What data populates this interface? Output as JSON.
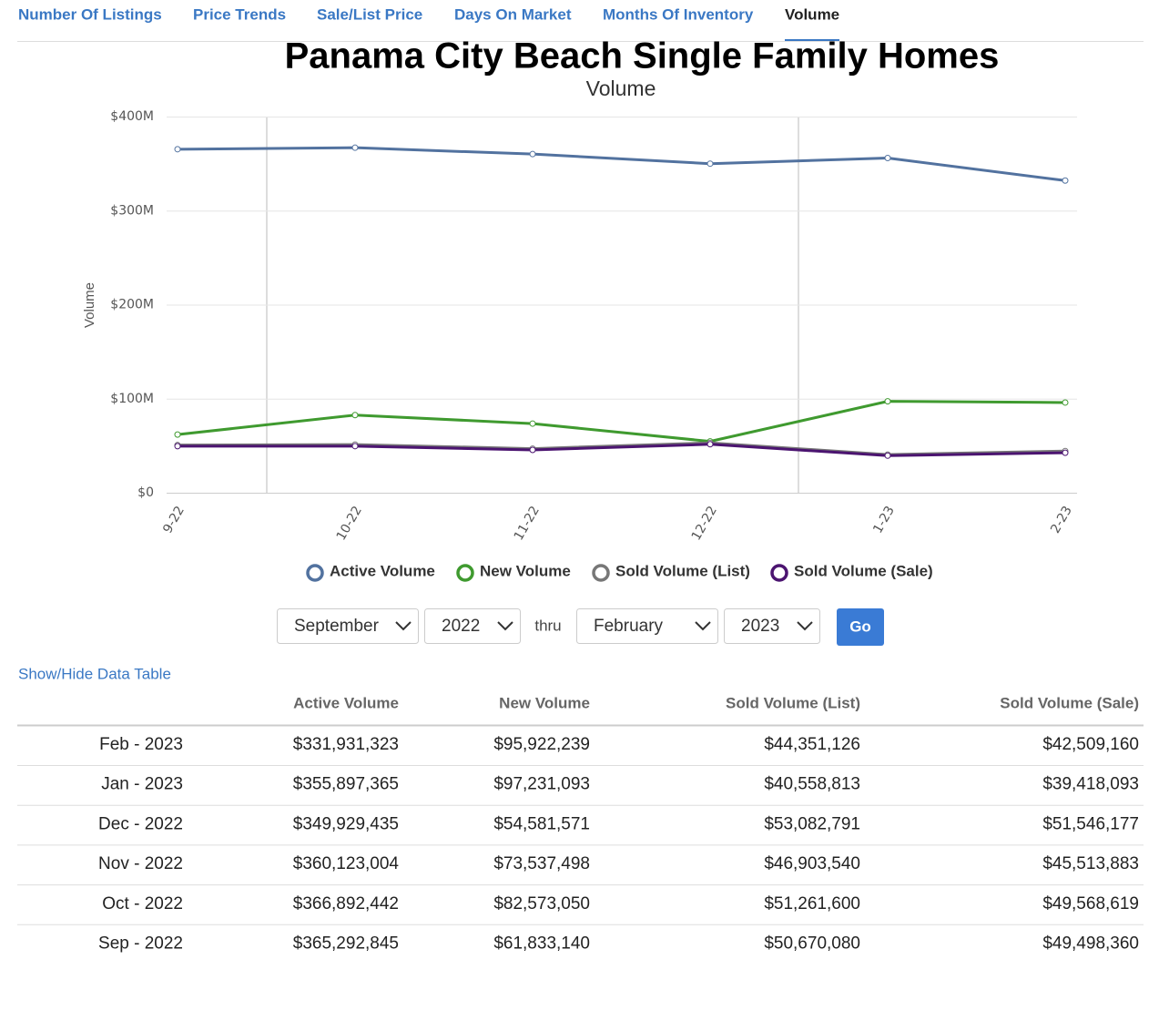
{
  "tabs": [
    "Number Of Listings",
    "Price Trends",
    "Sale/List Price",
    "Days On Market",
    "Months Of Inventory",
    "Volume"
  ],
  "chart_data": {
    "type": "line",
    "title": "Panama City Beach Single Family Homes",
    "subtitle": "Volume",
    "y_label": "Volume",
    "categories": [
      "9-22",
      "10-22",
      "11-22",
      "12-22",
      "1-23",
      "2-23"
    ],
    "series": [
      {
        "name": "Active Volume",
        "color": "#52729f",
        "values": [
          365292845,
          366892442,
          360123004,
          349929435,
          355897365,
          331931323
        ]
      },
      {
        "name": "New Volume",
        "color": "#3f9a2f",
        "values": [
          61833140,
          82573050,
          73537498,
          54581571,
          97231093,
          95922239
        ]
      },
      {
        "name": "Sold Volume (List)",
        "color": "#777777",
        "values": [
          50670080,
          51261600,
          46903540,
          53082791,
          40558813,
          44351126
        ]
      },
      {
        "name": "Sold Volume (Sale)",
        "color": "#4b1470",
        "values": [
          49498360,
          49568619,
          45513883,
          51546177,
          39418093,
          42509160
        ]
      }
    ],
    "ylim": [
      0,
      400000000
    ],
    "yticks": [
      {
        "value": 0,
        "label": "$0"
      },
      {
        "value": 100000000,
        "label": "$100M"
      },
      {
        "value": 200000000,
        "label": "$200M"
      },
      {
        "value": 300000000,
        "label": "$300M"
      },
      {
        "value": 400000000,
        "label": "$400M"
      }
    ],
    "grid": true,
    "legend": "bottom"
  },
  "controls": {
    "start_month": "September",
    "start_year": "2022",
    "thru": "thru",
    "end_month": "February",
    "end_year": "2023",
    "go": "Go"
  },
  "table": {
    "toggle": "Show/Hide Data Table",
    "header": [
      "Active Volume",
      "New Volume",
      "Sold Volume (List)",
      "Sold Volume (Sale)"
    ],
    "rows": [
      [
        "Feb - 2023",
        "$331,931,323",
        "$95,922,239",
        "$44,351,126",
        "$42,509,160"
      ],
      [
        "Jan - 2023",
        "$355,897,365",
        "$97,231,093",
        "$40,558,813",
        "$39,418,093"
      ],
      [
        "Dec - 2022",
        "$349,929,435",
        "$54,581,571",
        "$53,082,791",
        "$51,546,177"
      ],
      [
        "Nov - 2022",
        "$360,123,004",
        "$73,537,498",
        "$46,903,540",
        "$45,513,883"
      ],
      [
        "Oct - 2022",
        "$366,892,442",
        "$82,573,050",
        "$51,261,600",
        "$49,568,619"
      ],
      [
        "Sep - 2022",
        "$365,292,845",
        "$61,833,140",
        "$50,670,080",
        "$49,498,360"
      ]
    ]
  }
}
